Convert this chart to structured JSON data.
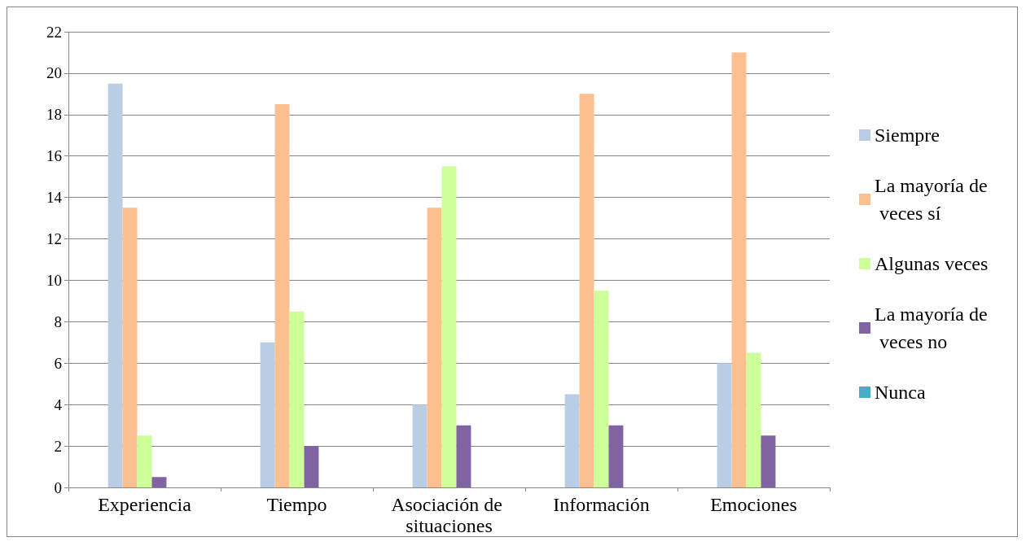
{
  "chart_data": {
    "type": "bar",
    "categories": [
      "Experiencia",
      "Tiempo",
      "Asociación de situaciones",
      "Información",
      "Emociones"
    ],
    "series": [
      {
        "name": "Siempre",
        "color": "#b9cde5",
        "values": [
          19.5,
          7,
          4,
          4.5,
          6
        ]
      },
      {
        "name": "La mayoría de veces sí",
        "color": "#fcc08f",
        "values": [
          13.5,
          18.5,
          13.5,
          19,
          21
        ]
      },
      {
        "name": "Algunas veces",
        "color": "#ccff99",
        "values": [
          2.5,
          8.5,
          15.5,
          9.5,
          6.5
        ]
      },
      {
        "name": "La mayoría de veces no",
        "color": "#8064a2",
        "values": [
          0.5,
          2,
          3,
          3,
          2.5
        ]
      },
      {
        "name": "Nunca",
        "color": "#4bacc6",
        "values": [
          0,
          0,
          0,
          0,
          0
        ]
      }
    ],
    "ylim": [
      0,
      22
    ],
    "yticks": [
      0,
      2,
      4,
      6,
      8,
      10,
      12,
      14,
      16,
      18,
      20,
      22
    ],
    "grid": "y",
    "legend": "right"
  }
}
